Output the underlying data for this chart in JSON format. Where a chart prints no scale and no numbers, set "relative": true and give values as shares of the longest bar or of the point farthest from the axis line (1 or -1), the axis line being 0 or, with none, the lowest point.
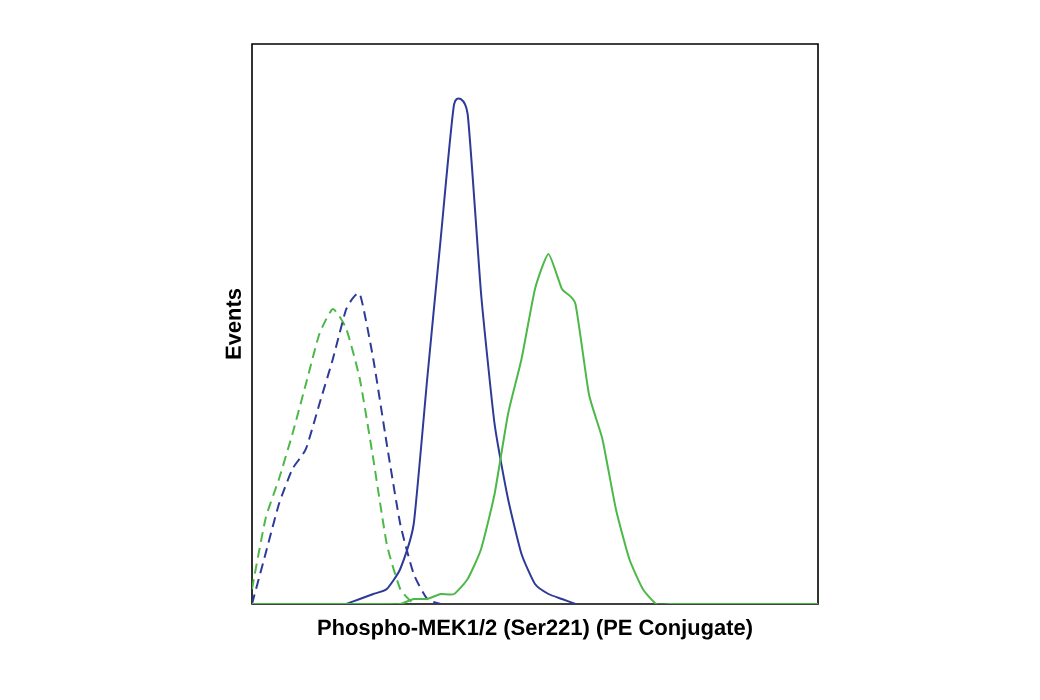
{
  "chart_data": {
    "type": "line",
    "relative": true,
    "xlabel": "Phospho-MEK1/2 (Ser221) (PE Conjugate)",
    "ylabel": "Events",
    "legend": false,
    "marker": "none",
    "categories": [
      null,
      null,
      null,
      null,
      null,
      null,
      null,
      null,
      null,
      null,
      null,
      null,
      null,
      null,
      null,
      null,
      null,
      null,
      null,
      null,
      null,
      null,
      null,
      null,
      null,
      null,
      null,
      null,
      null,
      null,
      null,
      null,
      null,
      null,
      null,
      null,
      null,
      null,
      null,
      null,
      null,
      null,
      null
    ],
    "series": [
      {
        "color": "#4cb848",
        "line_style": "dashed",
        "values": [
          0.03,
          0.17,
          0.25,
          0.34,
          0.44,
          0.54,
          0.59,
          0.55,
          0.45,
          0.29,
          0.12,
          0.03,
          0,
          null,
          null,
          null,
          null,
          null,
          null,
          null,
          null,
          null,
          null,
          null,
          null,
          null,
          null,
          null,
          null,
          null,
          null,
          null,
          null,
          null,
          null,
          null,
          null,
          null,
          null,
          null,
          null,
          null,
          null
        ]
      },
      {
        "color": "#2e3a97",
        "line_style": "dashed",
        "values": [
          0,
          0.1,
          0.2,
          0.27,
          0.31,
          0.4,
          0.49,
          0.59,
          0.62,
          0.49,
          0.32,
          0.16,
          0.06,
          0.01,
          0,
          null,
          null,
          null,
          null,
          null,
          null,
          null,
          null,
          null,
          null,
          null,
          null,
          null,
          null,
          null,
          null,
          null,
          null,
          null,
          null,
          null,
          null,
          null,
          null,
          null,
          null,
          null,
          null
        ]
      },
      {
        "color": "#2e3a97",
        "line_style": "solid",
        "values": [
          null,
          null,
          null,
          null,
          null,
          null,
          null,
          0,
          0.01,
          0.02,
          0.03,
          0.07,
          0.16,
          0.45,
          0.73,
          1,
          0.98,
          0.62,
          0.36,
          0.21,
          0.1,
          0.04,
          0.02,
          0.01,
          0,
          null,
          null,
          null,
          null,
          null,
          null,
          null,
          null,
          null,
          null,
          null,
          null,
          null,
          null,
          null,
          null,
          null,
          null
        ]
      },
      {
        "color": "#4cb848",
        "line_style": "solid",
        "values": [
          0,
          0,
          0,
          0,
          0,
          0,
          0,
          0,
          0,
          0,
          0,
          0,
          0.01,
          0.01,
          0.02,
          0.02,
          0.05,
          0.11,
          0.22,
          0.38,
          0.49,
          0.63,
          0.7,
          0.63,
          0.6,
          0.42,
          0.33,
          0.19,
          0.09,
          0.03,
          0,
          0,
          0,
          0,
          0,
          0,
          0,
          0,
          0,
          0,
          0,
          0,
          0
        ]
      }
    ]
  }
}
